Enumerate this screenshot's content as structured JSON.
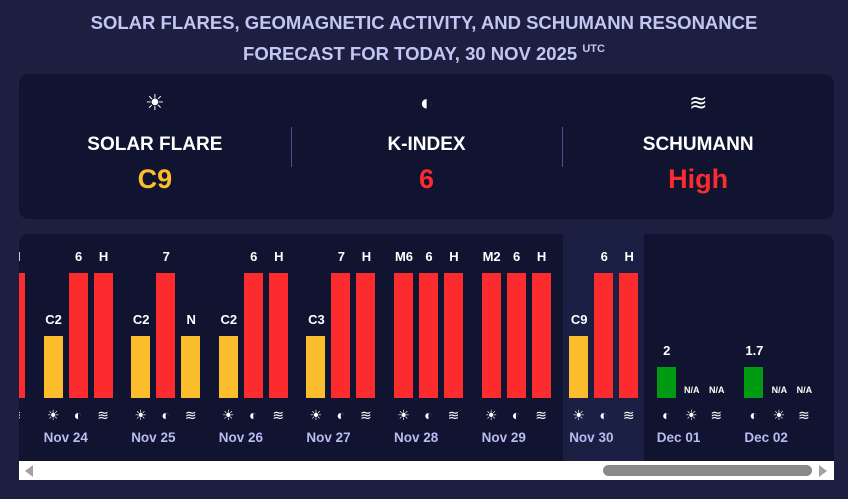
{
  "header": {
    "title_line1": "SOLAR FLARES, GEOMAGNETIC ACTIVITY, AND SCHUMANN RESONANCE",
    "title_line2": "FORECAST FOR TODAY, 30 NOV 2025",
    "title_sup": "UTC"
  },
  "summary": [
    {
      "icon": "sun-icon",
      "glyph": "☀",
      "label": "SOLAR FLARE",
      "value": "C9",
      "color": "#fbbd2c"
    },
    {
      "icon": "magnet-icon",
      "glyph": "◐",
      "label": "K-INDEX",
      "value": "6",
      "color": "#fc2b2d"
    },
    {
      "icon": "waves-icon",
      "glyph": "≋",
      "label": "SCHUMANN",
      "value": "High",
      "color": "#fc2b2d"
    }
  ],
  "colors": {
    "yellow": "#fbbd2c",
    "red": "#fc2b2d",
    "green": "#009b12"
  },
  "days": [
    {
      "date": "",
      "bars": [
        {
          "type": "sun",
          "label": "",
          "level": 1,
          "color": "red"
        },
        {
          "type": "magnet",
          "label": "",
          "level": 1,
          "color": "red"
        },
        {
          "type": "waves",
          "label": "H",
          "level": 1,
          "color": "red"
        }
      ]
    },
    {
      "date": "Nov 24",
      "bars": [
        {
          "type": "sun",
          "label": "C2",
          "level": 0.5,
          "color": "yellow"
        },
        {
          "type": "magnet",
          "label": "6",
          "level": 1,
          "color": "red"
        },
        {
          "type": "waves",
          "label": "H",
          "level": 1,
          "color": "red"
        }
      ]
    },
    {
      "date": "Nov 25",
      "bars": [
        {
          "type": "sun",
          "label": "C2",
          "level": 0.5,
          "color": "yellow"
        },
        {
          "type": "magnet",
          "label": "7",
          "level": 1,
          "color": "red"
        },
        {
          "type": "waves",
          "label": "N",
          "level": 0.5,
          "color": "yellow"
        }
      ]
    },
    {
      "date": "Nov 26",
      "bars": [
        {
          "type": "sun",
          "label": "C2",
          "level": 0.5,
          "color": "yellow"
        },
        {
          "type": "magnet",
          "label": "6",
          "level": 1,
          "color": "red"
        },
        {
          "type": "waves",
          "label": "H",
          "level": 1,
          "color": "red"
        }
      ]
    },
    {
      "date": "Nov 27",
      "bars": [
        {
          "type": "sun",
          "label": "C3",
          "level": 0.5,
          "color": "yellow"
        },
        {
          "type": "magnet",
          "label": "7",
          "level": 1,
          "color": "red"
        },
        {
          "type": "waves",
          "label": "H",
          "level": 1,
          "color": "red"
        }
      ]
    },
    {
      "date": "Nov 28",
      "bars": [
        {
          "type": "sun",
          "label": "M6",
          "level": 1,
          "color": "red"
        },
        {
          "type": "magnet",
          "label": "6",
          "level": 1,
          "color": "red"
        },
        {
          "type": "waves",
          "label": "H",
          "level": 1,
          "color": "red"
        }
      ]
    },
    {
      "date": "Nov 29",
      "bars": [
        {
          "type": "sun",
          "label": "M2",
          "level": 1,
          "color": "red"
        },
        {
          "type": "magnet",
          "label": "6",
          "level": 1,
          "color": "red"
        },
        {
          "type": "waves",
          "label": "H",
          "level": 1,
          "color": "red"
        }
      ]
    },
    {
      "date": "Nov 30",
      "today": true,
      "bars": [
        {
          "type": "sun",
          "label": "C9",
          "level": 0.5,
          "color": "yellow"
        },
        {
          "type": "magnet",
          "label": "6",
          "level": 1,
          "color": "red"
        },
        {
          "type": "waves",
          "label": "H",
          "level": 1,
          "color": "red"
        }
      ]
    },
    {
      "date": "Dec 01",
      "bars": [
        {
          "type": "magnet",
          "label": "2",
          "level": 0.25,
          "color": "green"
        },
        {
          "type": "sun",
          "label": "N/A",
          "level": 0
        },
        {
          "type": "waves",
          "label": "N/A",
          "level": 0
        }
      ]
    },
    {
      "date": "Dec 02",
      "bars": [
        {
          "type": "magnet",
          "label": "1.7",
          "level": 0.25,
          "color": "green"
        },
        {
          "type": "sun",
          "label": "N/A",
          "level": 0
        },
        {
          "type": "waves",
          "label": "N/A",
          "level": 0
        }
      ]
    }
  ]
}
